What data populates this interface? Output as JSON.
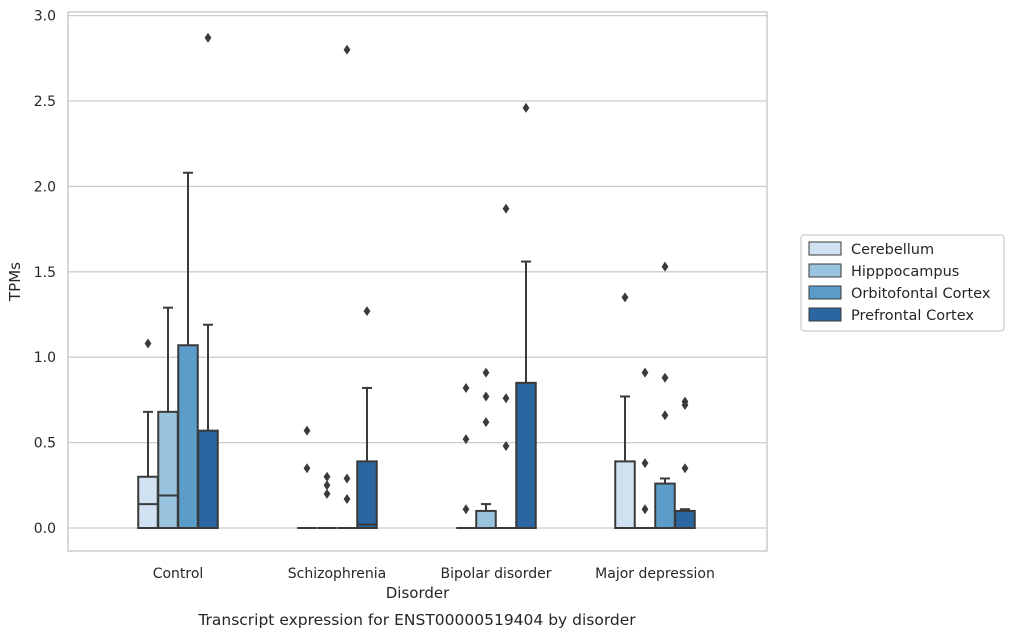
{
  "caption": "Transcript expression for ENST00000519404 by disorder",
  "chart_data": {
    "type": "box",
    "xlabel": "Disorder",
    "ylabel": "TPMs",
    "categories": [
      "Control",
      "Schizophrenia",
      "Bipolar disorder",
      "Major depression"
    ],
    "ylim": [
      -0.14,
      3.02
    ],
    "yticks": [
      "0.0",
      "0.5",
      "1.0",
      "1.5",
      "2.0",
      "2.5",
      "3.0"
    ],
    "grid": "horizontal",
    "legend_position": "right",
    "series": [
      {
        "name": "Cerebellum",
        "color": "#d0e1f2",
        "boxes": [
          {
            "q1": 0.0,
            "median": 0.14,
            "q3": 0.3,
            "whisker_low": 0.0,
            "whisker_high": 0.68,
            "outliers": [
              1.08
            ]
          },
          {
            "q1": 0.0,
            "median": 0.0,
            "q3": 0.0,
            "whisker_low": 0.0,
            "whisker_high": 0.0,
            "outliers": [
              0.57,
              0.35
            ]
          },
          {
            "q1": 0.0,
            "median": 0.0,
            "q3": 0.0,
            "whisker_low": 0.0,
            "whisker_high": 0.0,
            "outliers": [
              0.82,
              0.52,
              0.11
            ]
          },
          {
            "q1": 0.0,
            "median": 0.0,
            "q3": 0.39,
            "whisker_low": 0.0,
            "whisker_high": 0.77,
            "outliers": [
              1.35
            ]
          }
        ]
      },
      {
        "name": "Hipppocampus",
        "color": "#9ac4de",
        "boxes": [
          {
            "q1": 0.0,
            "median": 0.19,
            "q3": 0.68,
            "whisker_low": 0.0,
            "whisker_high": 1.29,
            "outliers": []
          },
          {
            "q1": 0.0,
            "median": 0.0,
            "q3": 0.0,
            "whisker_low": 0.0,
            "whisker_high": 0.0,
            "outliers": [
              0.3,
              0.25,
              0.2
            ]
          },
          {
            "q1": 0.0,
            "median": 0.0,
            "q3": 0.1,
            "whisker_low": 0.0,
            "whisker_high": 0.14,
            "outliers": [
              0.91,
              0.77,
              0.62
            ]
          },
          {
            "q1": 0.0,
            "median": 0.0,
            "q3": 0.0,
            "whisker_low": 0.0,
            "whisker_high": 0.0,
            "outliers": [
              0.91,
              0.38,
              0.11
            ]
          }
        ]
      },
      {
        "name": "Orbitofontal Cortex",
        "color": "#5b9cc8",
        "boxes": [
          {
            "q1": 0.0,
            "median": 0.0,
            "q3": 1.07,
            "whisker_low": 0.0,
            "whisker_high": 2.08,
            "outliers": []
          },
          {
            "q1": 0.0,
            "median": 0.0,
            "q3": 0.0,
            "whisker_low": 0.0,
            "whisker_high": 0.0,
            "outliers": [
              2.8,
              0.29,
              0.17
            ]
          },
          {
            "q1": 0.0,
            "median": 0.0,
            "q3": 0.0,
            "whisker_low": 0.0,
            "whisker_high": 0.0,
            "outliers": [
              1.87,
              0.76,
              0.48
            ]
          },
          {
            "q1": 0.0,
            "median": 0.0,
            "q3": 0.26,
            "whisker_low": 0.0,
            "whisker_high": 0.29,
            "outliers": [
              1.53,
              0.88,
              0.66
            ]
          }
        ]
      },
      {
        "name": "Prefrontal Cortex",
        "color": "#2b66a0",
        "boxes": [
          {
            "q1": 0.0,
            "median": 0.0,
            "q3": 0.57,
            "whisker_low": 0.0,
            "whisker_high": 1.19,
            "outliers": [
              2.87
            ]
          },
          {
            "q1": 0.0,
            "median": 0.02,
            "q3": 0.39,
            "whisker_low": 0.0,
            "whisker_high": 0.82,
            "outliers": [
              1.27
            ]
          },
          {
            "q1": 0.0,
            "median": 0.0,
            "q3": 0.85,
            "whisker_low": 0.0,
            "whisker_high": 1.56,
            "outliers": [
              2.46
            ]
          },
          {
            "q1": 0.0,
            "median": 0.0,
            "q3": 0.1,
            "whisker_low": 0.0,
            "whisker_high": 0.11,
            "outliers": [
              0.74,
              0.72,
              0.35
            ]
          }
        ]
      }
    ]
  }
}
